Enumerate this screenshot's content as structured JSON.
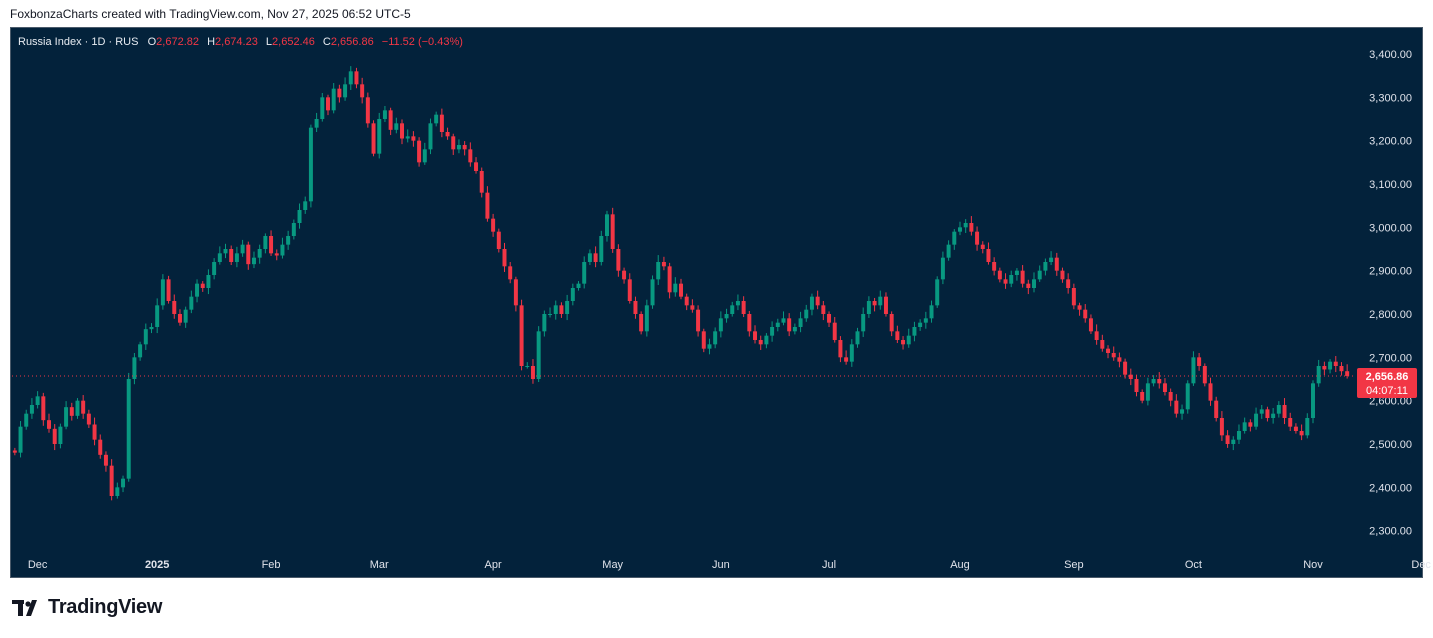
{
  "header": {
    "attribution": "FoxbonzaCharts created with TradingView.com, Nov 27, 2025 06:52 UTC-5"
  },
  "legend": {
    "symbol": "Russia Index · 1D · RUS",
    "open_label": "O",
    "open": "2,672.82",
    "high_label": "H",
    "high": "2,674.23",
    "low_label": "L",
    "low": "2,652.46",
    "close_label": "C",
    "close": "2,656.86",
    "change": "−11.52 (−0.43%)"
  },
  "price_tag": {
    "price": "2,656.86",
    "countdown": "04:07:11"
  },
  "footer": {
    "brand": "TradingView",
    "logo_icon": "tradingview-logo-icon"
  },
  "colors": {
    "background": "#03223b",
    "up": "#089981",
    "down": "#f23645",
    "axis_text": "#e0e3eb"
  },
  "chart_data": {
    "type": "candlestick",
    "ylim": [
      2260,
      3460
    ],
    "y_ticks": [
      {
        "value": 2300,
        "label": "2,300.00"
      },
      {
        "value": 2400,
        "label": "2,400.00"
      },
      {
        "value": 2500,
        "label": "2,500.00"
      },
      {
        "value": 2600,
        "label": "2,600.00"
      },
      {
        "value": 2700,
        "label": "2,700.00"
      },
      {
        "value": 2800,
        "label": "2,800.00"
      },
      {
        "value": 2900,
        "label": "2,900.00"
      },
      {
        "value": 3000,
        "label": "3,000.00"
      },
      {
        "value": 3100,
        "label": "3,100.00"
      },
      {
        "value": 3200,
        "label": "3,200.00"
      },
      {
        "value": 3300,
        "label": "3,300.00"
      },
      {
        "value": 3400,
        "label": "3,400.00"
      }
    ],
    "x_ticks": [
      {
        "index": 4,
        "label": "Dec"
      },
      {
        "index": 25,
        "label": "2025"
      },
      {
        "index": 45,
        "label": "Feb"
      },
      {
        "index": 64,
        "label": "Mar"
      },
      {
        "index": 84,
        "label": "Apr"
      },
      {
        "index": 105,
        "label": "May"
      },
      {
        "index": 124,
        "label": "Jun"
      },
      {
        "index": 143,
        "label": "Jul"
      },
      {
        "index": 166,
        "label": "Aug"
      },
      {
        "index": 186,
        "label": "Sep"
      },
      {
        "index": 207,
        "label": "Oct"
      },
      {
        "index": 228,
        "label": "Nov"
      },
      {
        "index": 247,
        "label": "Dec"
      }
    ],
    "last_price": 2656.86,
    "closes": [
      2480,
      2540,
      2570,
      2590,
      2610,
      2555,
      2535,
      2500,
      2540,
      2585,
      2565,
      2600,
      2570,
      2545,
      2510,
      2475,
      2450,
      2380,
      2400,
      2420,
      2650,
      2700,
      2730,
      2765,
      2770,
      2820,
      2880,
      2830,
      2800,
      2780,
      2810,
      2840,
      2870,
      2860,
      2890,
      2920,
      2940,
      2950,
      2920,
      2940,
      2960,
      2915,
      2930,
      2950,
      2980,
      2940,
      2935,
      2960,
      2980,
      3010,
      3040,
      3060,
      3230,
      3250,
      3300,
      3270,
      3320,
      3300,
      3330,
      3360,
      3330,
      3300,
      3240,
      3170,
      3250,
      3270,
      3225,
      3240,
      3205,
      3210,
      3200,
      3150,
      3180,
      3240,
      3260,
      3220,
      3210,
      3180,
      3190,
      3180,
      3150,
      3130,
      3080,
      3020,
      2990,
      2950,
      2910,
      2880,
      2820,
      2680,
      2680,
      2650,
      2760,
      2800,
      2800,
      2820,
      2800,
      2830,
      2860,
      2870,
      2920,
      2940,
      2920,
      2980,
      3030,
      2950,
      2900,
      2880,
      2830,
      2800,
      2760,
      2820,
      2880,
      2920,
      2910,
      2850,
      2870,
      2840,
      2820,
      2810,
      2760,
      2720,
      2730,
      2760,
      2790,
      2800,
      2820,
      2830,
      2800,
      2760,
      2740,
      2730,
      2750,
      2770,
      2780,
      2790,
      2760,
      2770,
      2790,
      2810,
      2840,
      2820,
      2800,
      2780,
      2740,
      2700,
      2690,
      2730,
      2760,
      2800,
      2830,
      2820,
      2840,
      2800,
      2760,
      2740,
      2730,
      2750,
      2770,
      2780,
      2790,
      2820,
      2880,
      2930,
      2960,
      2990,
      3000,
      3010,
      2990,
      2960,
      2950,
      2920,
      2900,
      2880,
      2870,
      2890,
      2900,
      2870,
      2860,
      2880,
      2900,
      2920,
      2930,
      2900,
      2880,
      2860,
      2820,
      2810,
      2790,
      2760,
      2740,
      2720,
      2710,
      2700,
      2690,
      2660,
      2650,
      2620,
      2600,
      2640,
      2650,
      2640,
      2620,
      2600,
      2570,
      2580,
      2640,
      2700,
      2680,
      2640,
      2600,
      2560,
      2520,
      2500,
      2510,
      2530,
      2550,
      2540,
      2570,
      2580,
      2560,
      2570,
      2590,
      2560,
      2540,
      2530,
      2520,
      2560,
      2640,
      2680,
      2672,
      2690,
      2680,
      2668,
      2657
    ]
  }
}
